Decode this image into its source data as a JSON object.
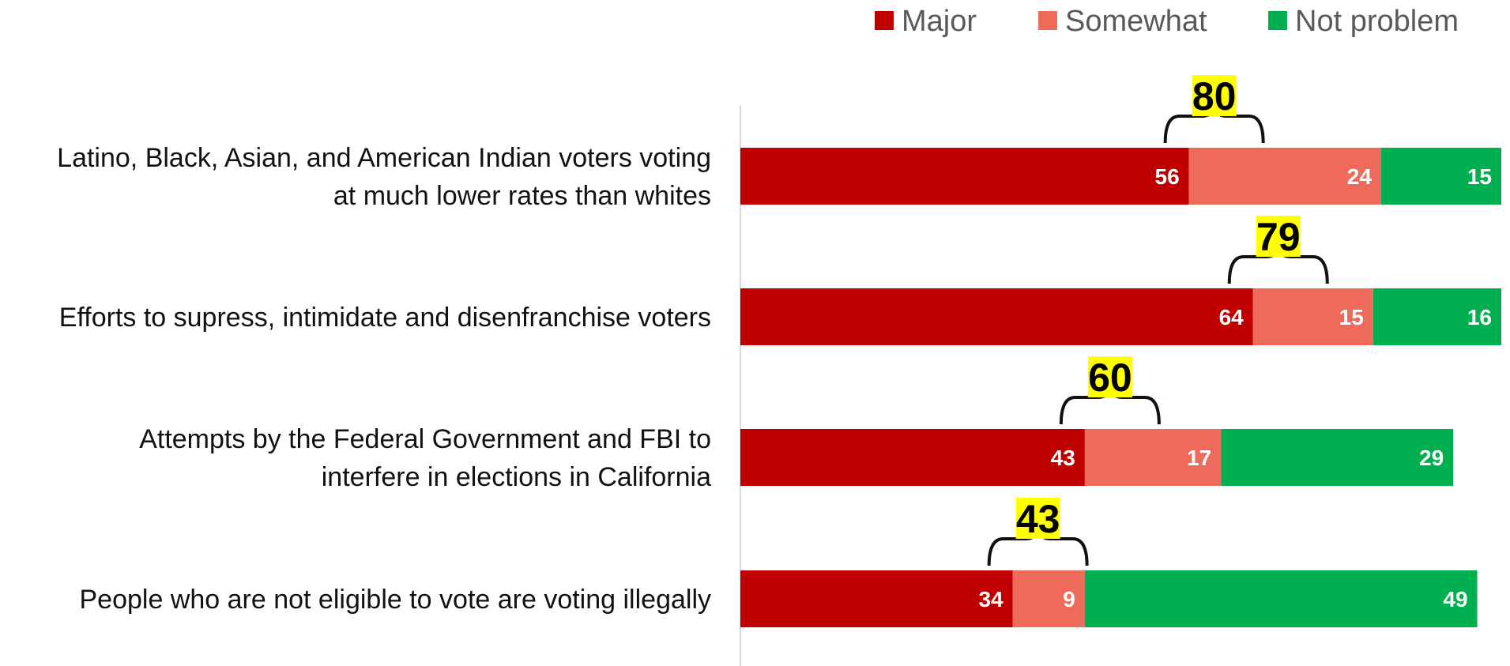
{
  "chart_data": {
    "type": "bar",
    "orientation": "horizontal",
    "stacked": true,
    "categories": [
      [
        "Latino, Black, Asian, and American Indian voters voting",
        "at much lower rates than whites"
      ],
      [
        "Efforts to supress, intimidate and disenfranchise voters"
      ],
      [
        "Attempts by the Federal Government and FBI to",
        "interfere in elections in California"
      ],
      [
        "People who are not eligible to vote are voting illegally"
      ]
    ],
    "series": [
      {
        "name": "Major",
        "color": "#C00000",
        "values": [
          56,
          64,
          43,
          34
        ]
      },
      {
        "name": "Somewhat",
        "color": "#EE6A5B",
        "values": [
          24,
          15,
          17,
          9
        ]
      },
      {
        "name": "Not problem",
        "color": "#00B050",
        "values": [
          15,
          16,
          29,
          49
        ]
      }
    ],
    "totals": {
      "label_background": "#FFFF00",
      "values": [
        80,
        79,
        60,
        43
      ]
    },
    "xlim": [
      0,
      95
    ],
    "grid": false,
    "legend_position": "top-right",
    "title": "",
    "xlabel": "",
    "ylabel": ""
  }
}
